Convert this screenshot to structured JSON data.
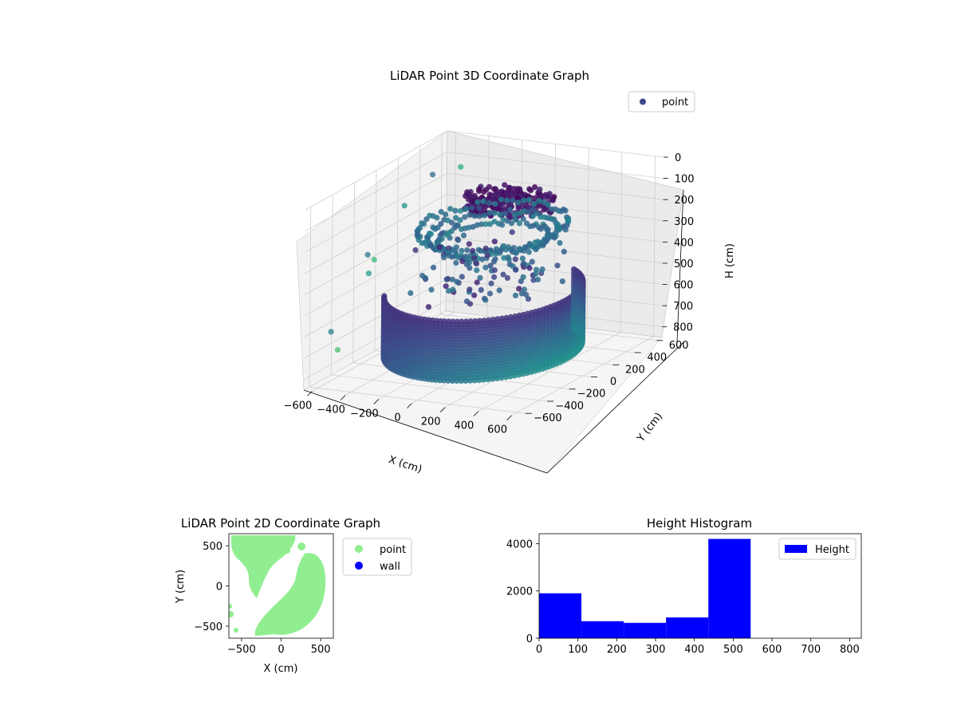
{
  "chart_data": [
    {
      "type": "scatter3d",
      "title": "LiDAR Point 3D Coordinate Graph",
      "xlabel": "X (cm)",
      "ylabel": "Y (cm)",
      "zlabel": "H (cm)",
      "xticks": [
        "−600",
        "−400",
        "−200",
        "0",
        "200",
        "400",
        "600"
      ],
      "yticks": [
        "−600",
        "−400",
        "−200",
        "0",
        "200",
        "400",
        "600"
      ],
      "zticks": [
        "0",
        "100",
        "200",
        "300",
        "400",
        "500",
        "600",
        "700",
        "800"
      ],
      "xlim": [
        -650,
        650
      ],
      "ylim": [
        -650,
        650
      ],
      "zlim": [
        0,
        850
      ],
      "z_inverted": true,
      "grid": true,
      "legend": {
        "position": "top-right",
        "entries": [
          {
            "label": "point",
            "color": "#3e4989"
          }
        ]
      },
      "colormap": "viridis",
      "structures": [
        {
          "kind": "wall-arc",
          "radius_cm": 500,
          "angle_start_deg": -150,
          "angle_end_deg": 60,
          "h_top_cm": 500,
          "h_bottom_cm": 780
        },
        {
          "kind": "ring",
          "radius_cm": 380,
          "h_cm": 210
        },
        {
          "kind": "ring",
          "radius_cm": 330,
          "h_cm": 240
        },
        {
          "kind": "ring",
          "radius_cm": 280,
          "h_cm": 270
        },
        {
          "kind": "cluster",
          "center_x_cm": 30,
          "center_y_cm": 180,
          "radius_cm": 180,
          "h_cm": 100
        }
      ],
      "outliers": [
        {
          "x": -560,
          "y": 380,
          "h": 120
        },
        {
          "x": -470,
          "y": 500,
          "h": 110
        },
        {
          "x": -610,
          "y": 200,
          "h": 220
        },
        {
          "x": -600,
          "y": -150,
          "h": 350
        },
        {
          "x": -580,
          "y": -120,
          "h": 380
        },
        {
          "x": -560,
          "y": -200,
          "h": 420
        },
        {
          "x": -640,
          "y": -420,
          "h": 640
        },
        {
          "x": -560,
          "y": -480,
          "h": 700
        }
      ]
    },
    {
      "type": "scatter",
      "title": "LiDAR Point 2D Coordinate Graph",
      "xlabel": "X (cm)",
      "ylabel": "Y (cm)",
      "xticks": [
        "−500",
        "0",
        "500"
      ],
      "yticks": [
        "−500",
        "0",
        "500"
      ],
      "xlim": [
        -660,
        660
      ],
      "ylim": [
        -650,
        650
      ],
      "legend": {
        "position": "right-outside",
        "entries": [
          {
            "label": "point",
            "color": "#90ee90"
          },
          {
            "label": "wall",
            "color": "#0000ff"
          }
        ]
      }
    },
    {
      "type": "bar",
      "title": "Height Histogram",
      "xticks": [
        "0",
        "100",
        "200",
        "300",
        "400",
        "500",
        "600",
        "700",
        "800"
      ],
      "yticks": [
        "0",
        "2000",
        "4000"
      ],
      "xlim": [
        0,
        830
      ],
      "ylim": [
        0,
        4420
      ],
      "bin_edges": [
        0,
        109,
        218,
        327,
        436,
        545
      ],
      "values": [
        1900,
        720,
        650,
        880,
        4200
      ],
      "color": "#0000ff",
      "legend": {
        "position": "top-right",
        "entries": [
          {
            "label": "Height",
            "color": "#0000ff"
          }
        ]
      }
    }
  ]
}
